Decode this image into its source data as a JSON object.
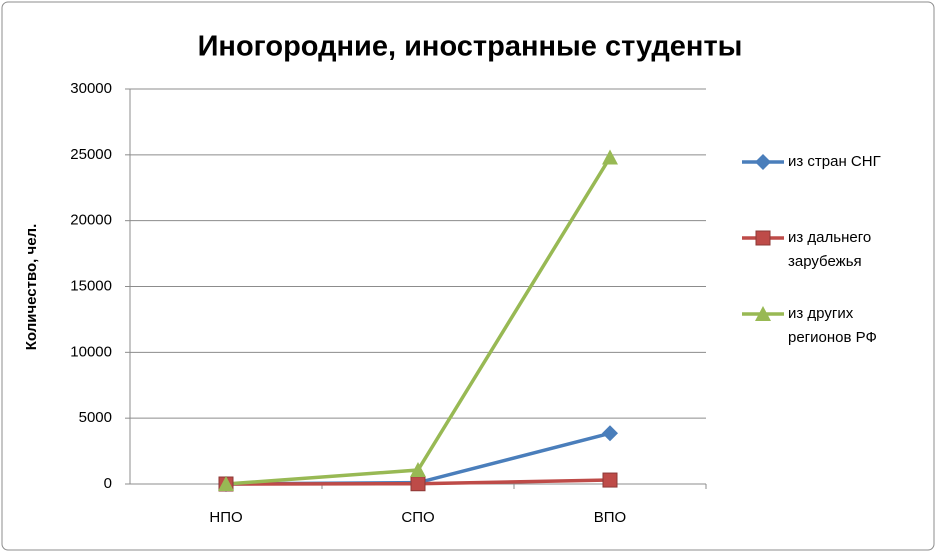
{
  "chart_data": {
    "type": "line",
    "title": "Иногородние, иностранные студенты",
    "y_label": "Количество, чел.",
    "categories": [
      "НПО",
      "СПО",
      "ВПО"
    ],
    "series": [
      {
        "name": "из стран СНГ",
        "color": "#4a7ebb",
        "marker": "diamond",
        "values": [
          0,
          100,
          3850
        ]
      },
      {
        "name": "из дальнего зарубежья",
        "color": "#be4b48",
        "marker": "square",
        "values": [
          0,
          20,
          300
        ]
      },
      {
        "name": "из других регионов РФ",
        "color": "#98b954",
        "marker": "triangle",
        "values": [
          0,
          1060,
          24800
        ]
      }
    ],
    "ylim": [
      0,
      30000
    ],
    "yticks": [
      0,
      5000,
      10000,
      15000,
      20000,
      25000,
      30000
    ],
    "grid": true,
    "legend": "right"
  }
}
